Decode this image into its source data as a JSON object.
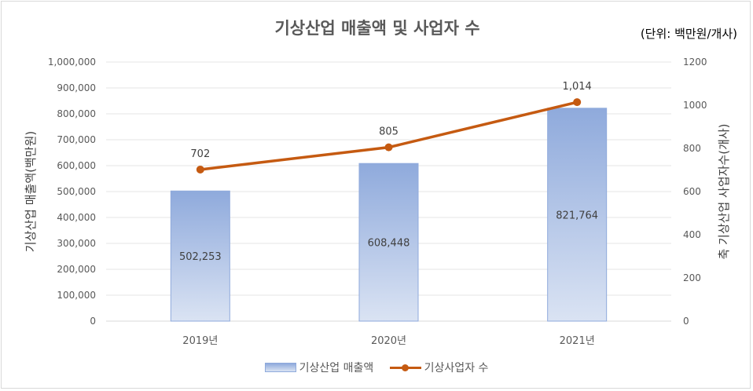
{
  "chart_data": {
    "type": "bar",
    "title": "기상산업 매출액 및 사업자 수",
    "unit_note": "(단위: 백만원/개사)",
    "categories": [
      "2019년",
      "2020년",
      "2021년"
    ],
    "series": [
      {
        "name": "기상산업 매출액",
        "type": "bar",
        "axis": "left",
        "values": [
          502253,
          608448,
          821764
        ],
        "labels": [
          "502,253",
          "608,448",
          "821,764"
        ],
        "color": "#8faadc"
      },
      {
        "name": "기상사업자 수",
        "type": "line",
        "axis": "right",
        "values": [
          702,
          805,
          1014
        ],
        "labels": [
          "702",
          "805",
          "1,014"
        ],
        "color": "#c55a11"
      }
    ],
    "y_left": {
      "label": "기상산업 매출액(백만원)",
      "ylim": [
        0,
        1000000
      ],
      "ticks": [
        "0",
        "100,000",
        "200,000",
        "300,000",
        "400,000",
        "500,000",
        "600,000",
        "700,000",
        "800,000",
        "900,000",
        "1,000,000"
      ]
    },
    "y_right": {
      "label": "축 기상산업 사업자수(개사)",
      "ylim": [
        0,
        1200
      ],
      "ticks": [
        "0",
        "200",
        "400",
        "600",
        "800",
        "1000",
        "1200"
      ]
    },
    "grid": true,
    "legend_position": "bottom"
  }
}
